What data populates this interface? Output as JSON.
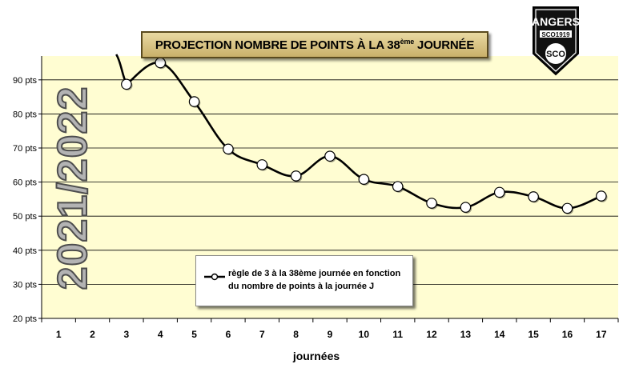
{
  "title": {
    "main": "PROJECTION NOMBRE DE POINTS À LA 38",
    "sup": "ème",
    "end": " JOURNÉE"
  },
  "season_label": "2021/2022",
  "logo": {
    "name": "ANGERS",
    "sub": "SCO1919",
    "monogram": "SCO"
  },
  "colors": {
    "plot_bg": "#fffdd2",
    "line": "#000000",
    "marker_fill": "#ffffff",
    "title_bg": "#d9c588"
  },
  "chart_data": {
    "type": "line",
    "title": "PROJECTION NOMBRE DE POINTS À LA 38ème JOURNÉE",
    "xlabel": "journées",
    "ylabel": "",
    "ylim": [
      20,
      97
    ],
    "yticks": [
      20,
      30,
      40,
      50,
      60,
      70,
      80,
      90
    ],
    "ytick_labels": [
      "20 pts",
      "30 pts",
      "40 pts",
      "50 pts",
      "60 pts",
      "70 pts",
      "80 pts",
      "90 pts"
    ],
    "categories": [
      "1",
      "2",
      "3",
      "4",
      "5",
      "6",
      "7",
      "8",
      "9",
      "10",
      "11",
      "12",
      "13",
      "14",
      "15",
      "16",
      "17"
    ],
    "grid": true,
    "legend_position": "bottom-center",
    "series": [
      {
        "name": "règle de 3 à la 38ème journée en fonction du nombre de points à la journée J",
        "values": [
          null,
          null,
          88.7,
          95,
          83.6,
          69.7,
          65.1,
          61.8,
          67.6,
          60.8,
          58.7,
          53.8,
          52.6,
          57,
          55.7,
          52.3,
          55.9
        ],
        "off_chart_start_day": 2.7
      }
    ]
  }
}
